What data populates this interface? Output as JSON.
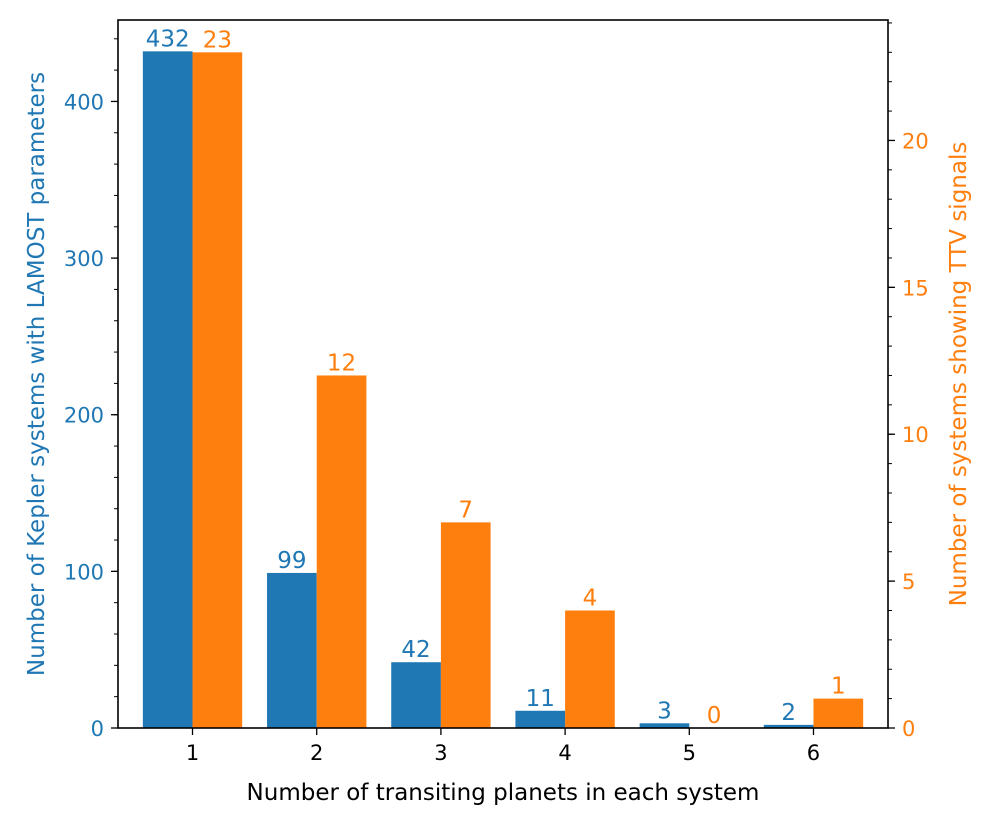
{
  "chart_data": {
    "type": "bar",
    "x_categories": [
      "1",
      "2",
      "3",
      "4",
      "5",
      "6"
    ],
    "xlabel": "Number of transiting planets in each system",
    "left_axis": {
      "label": "Number of Kepler systems with LAMOST parameters",
      "ylim": [
        0,
        452
      ],
      "ticks": [
        0,
        100,
        200,
        300,
        400
      ],
      "minor_step": 20,
      "color": "#1f77b4"
    },
    "right_axis": {
      "label": "Number of systems showing TTV signals",
      "ylim": [
        0,
        24.1
      ],
      "ticks": [
        0,
        5,
        10,
        15,
        20
      ],
      "minor_step": 1,
      "color": "#ff7f0e"
    },
    "series": [
      {
        "axis": "left",
        "color": "#1f77b4",
        "values": [
          432,
          99,
          42,
          11,
          3,
          2
        ]
      },
      {
        "axis": "right",
        "color": "#ff7f0e",
        "values": [
          23,
          12,
          7,
          4,
          0,
          1
        ]
      }
    ]
  }
}
